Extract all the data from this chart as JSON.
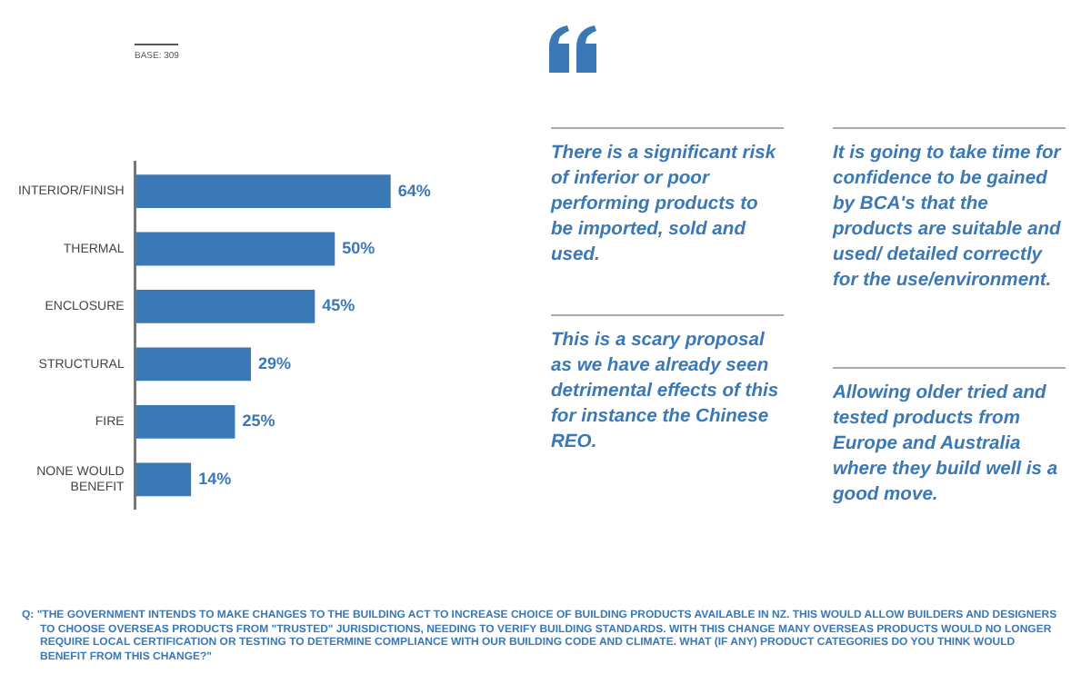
{
  "chart_data": {
    "type": "bar",
    "orientation": "horizontal",
    "categories": [
      "INTERIOR/FINISH",
      "THERMAL",
      "ENCLOSURE",
      "STRUCTURAL",
      "FIRE",
      "NONE WOULD BENEFIT"
    ],
    "values": [
      64,
      50,
      45,
      29,
      25,
      14
    ],
    "value_labels": [
      "64%",
      "50%",
      "45%",
      "29%",
      "25%",
      "14%"
    ],
    "color": "#3b78b6",
    "tick_labels": "y",
    "grid": false,
    "legend": false,
    "annotations": [
      "BASE: 309",
      "There is a significant risk of inferior or poor performing products to be imported, sold and used.",
      "This is a scary proposal as we have already seen detrimental effects of this for instance the Chinese REO.",
      "It is going to take time for confidence to be gained by BCA's that the products are suitable and used/ detailed correctly for the use/environment.",
      "Allowing older tried and tested products from Europe and Australia where they build well is a good move.",
      "Q: \"THE GOVERNMENT INTENDS TO MAKE CHANGES TO THE BUILDING ACT TO INCREASE CHOICE OF BUILDING PRODUCTS AVAILABLE IN NZ. THIS WOULD ALLOW BUILDERS AND DESIGNERS TO CHOOSE OVERSEAS PRODUCTS FROM \"TRUSTED\" JURISDICTIONS, NEEDING TO VERIFY BUILDING STANDARDS. WITH THIS CHANGE MANY OVERSEAS PRODUCTS WOULD NO LONGER REQUIRE LOCAL CERTIFICATION OR TESTING TO DETERMINE COMPLIANCE WITH OUR BUILDING CODE AND CLIMATE. WHAT (IF ANY) PRODUCT CATEGORIES DO YOU THINK WOULD BENEFIT FROM THIS CHANGE?\""
    ]
  }
}
